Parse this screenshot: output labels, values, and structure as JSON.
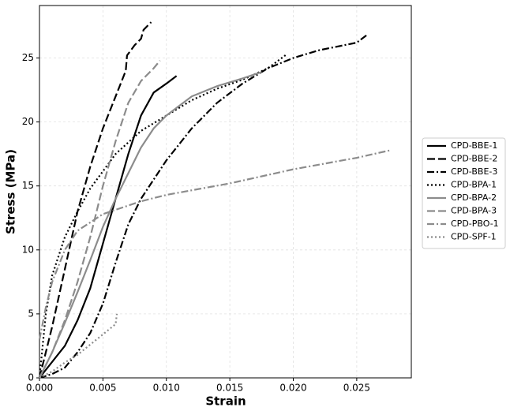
{
  "chart_data": {
    "type": "line",
    "xlabel": "Strain",
    "ylabel": "Stress (MPa)",
    "xlim": [
      0,
      0.0293
    ],
    "ylim": [
      0,
      29.1
    ],
    "xticks": [
      {
        "value": 0,
        "label": "0.000"
      },
      {
        "value": 0.005,
        "label": "0.005"
      },
      {
        "value": 0.01,
        "label": "0.010"
      },
      {
        "value": 0.015,
        "label": "0.015"
      },
      {
        "value": 0.02,
        "label": "0.020"
      },
      {
        "value": 0.025,
        "label": "0.025"
      }
    ],
    "yticks": [
      0,
      5,
      10,
      15,
      20,
      25
    ],
    "grid": true,
    "legend": "right",
    "series": [
      {
        "name": "CPD-BBE-1",
        "color": "#000000",
        "dash": "solid",
        "x": [
          0,
          0.002,
          0.003,
          0.004,
          0.005,
          0.006,
          0.007,
          0.008,
          0.009,
          0.01,
          0.0108
        ],
        "values": [
          0,
          2.5,
          4.5,
          7,
          10.5,
          14,
          17.5,
          20.5,
          22.3,
          23,
          23.6
        ]
      },
      {
        "name": "CPD-BBE-2",
        "color": "#000000",
        "dash": "dashed",
        "x": [
          0,
          0.001,
          0.002,
          0.003,
          0.004,
          0.005,
          0.006,
          0.0068,
          0.0069,
          0.0075,
          0.008,
          0.0082,
          0.0088
        ],
        "values": [
          0,
          4,
          8.5,
          13,
          16.5,
          19.5,
          22,
          24,
          25.2,
          26,
          26.5,
          27.2,
          27.8
        ]
      },
      {
        "name": "CPD-BBE-3",
        "color": "#000000",
        "dash": "dashdot",
        "x": [
          0,
          0.001,
          0.002,
          0.003,
          0.004,
          0.005,
          0.006,
          0.007,
          0.008,
          0.009,
          0.01,
          0.012,
          0.014,
          0.016,
          0.018,
          0.02,
          0.022,
          0.024,
          0.025,
          0.0258
        ],
        "values": [
          0,
          0.3,
          0.8,
          2,
          3.5,
          5.8,
          9,
          12,
          14,
          15.5,
          17,
          19.5,
          21.5,
          23,
          24.2,
          25,
          25.6,
          26,
          26.2,
          26.8
        ]
      },
      {
        "name": "CPD-BPA-1",
        "color": "#000000",
        "dash": "dotted",
        "x": [
          0,
          0.0005,
          0.001,
          0.002,
          0.003,
          0.004,
          0.006,
          0.008,
          0.01,
          0.012,
          0.014,
          0.016,
          0.018,
          0.0195
        ],
        "values": [
          0,
          5,
          8,
          11,
          13,
          14.8,
          17.5,
          19.3,
          20.5,
          21.7,
          22.6,
          23.3,
          24.2,
          25.3
        ]
      },
      {
        "name": "CPD-BPA-2",
        "color": "#8c8c8c",
        "dash": "solid",
        "x": [
          0,
          0.001,
          0.002,
          0.003,
          0.004,
          0.005,
          0.006,
          0.007,
          0.008,
          0.009,
          0.01,
          0.012,
          0.014,
          0.016,
          0.0175
        ],
        "values": [
          0,
          2,
          4.3,
          6.7,
          9.2,
          11.8,
          14,
          16,
          18,
          19.5,
          20.5,
          22,
          22.8,
          23.4,
          23.9
        ]
      },
      {
        "name": "CPD-BPA-3",
        "color": "#8c8c8c",
        "dash": "dashed",
        "x": [
          0,
          0.001,
          0.002,
          0.003,
          0.004,
          0.005,
          0.006,
          0.007,
          0.008,
          0.009,
          0.0095
        ],
        "values": [
          0,
          2,
          4.5,
          7.5,
          11,
          15,
          18.5,
          21.5,
          23.2,
          24.2,
          24.8
        ]
      },
      {
        "name": "CPD-PBO-1",
        "color": "#8c8c8c",
        "dash": "dashdot",
        "x": [
          0,
          0.0005,
          0.001,
          0.002,
          0.003,
          0.005,
          0.008,
          0.01,
          0.015,
          0.02,
          0.025,
          0.0277
        ],
        "values": [
          3,
          5.5,
          7.5,
          10,
          11.5,
          12.8,
          13.8,
          14.3,
          15.2,
          16.3,
          17.2,
          17.8
        ]
      },
      {
        "name": "CPD-SPF-1",
        "color": "#8c8c8c",
        "dash": "dotted",
        "x": [
          0,
          0.001,
          0.002,
          0.003,
          0.004,
          0.005,
          0.006,
          0.0061
        ],
        "values": [
          0,
          0.5,
          1.2,
          1.8,
          2.6,
          3.4,
          4.2,
          5
        ]
      }
    ]
  }
}
